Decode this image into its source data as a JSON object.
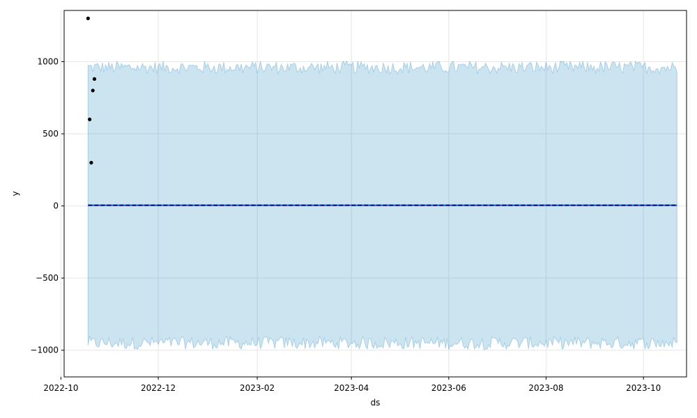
{
  "chart_data": {
    "type": "line",
    "xlabel": "ds",
    "ylabel": "y",
    "xlim": [
      "2022-10-03",
      "2023-10-28"
    ],
    "ylim": [
      -1185,
      1355
    ],
    "grid": true,
    "x_ticks": [
      "2022-10",
      "2022-12",
      "2023-02",
      "2023-04",
      "2023-06",
      "2023-08",
      "2023-10"
    ],
    "y_ticks": [
      1000,
      500,
      0,
      -500,
      -1000
    ],
    "y_tick_labels": [
      "1000",
      "500",
      "0",
      "−500",
      "−1000"
    ],
    "observed_points": [
      {
        "x": "2022-10-18",
        "y": 1300
      },
      {
        "x": "2022-10-19",
        "y": 600
      },
      {
        "x": "2022-10-20",
        "y": 300
      },
      {
        "x": "2022-10-21",
        "y": 800
      },
      {
        "x": "2022-10-22",
        "y": 880
      }
    ],
    "forecast": {
      "start": "2022-10-18",
      "end": "2023-10-22",
      "yhat": 5,
      "trend": 5,
      "yhat_upper_center": 960,
      "yhat_lower_center": -950,
      "band_noise_amplitude": 45
    },
    "colors": {
      "observed": "#000000",
      "forecast_line": "#0072B2",
      "trend_line": "#00008B",
      "uncertainty_fill": "#0072B2",
      "grid": "#e6e6e6"
    }
  }
}
